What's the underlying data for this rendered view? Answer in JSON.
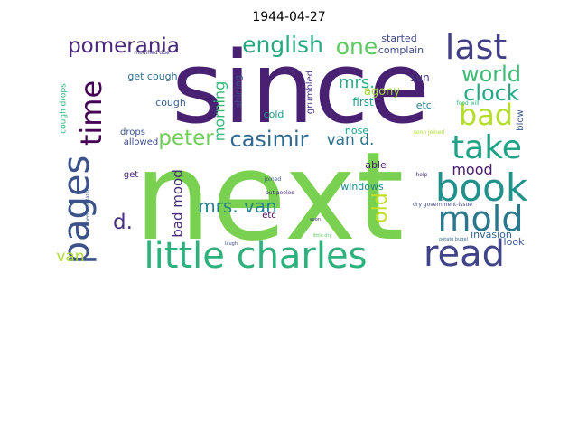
{
  "figure": {
    "title": "1944-04-27"
  },
  "chart_data": {
    "type": "wordcloud",
    "title": "1944-04-27",
    "colormap": "viridis",
    "background": "#ffffff",
    "words": [
      {
        "text": "since",
        "weight": 100,
        "color": "#482173",
        "vertical": false
      },
      {
        "text": "next",
        "weight": 98,
        "color": "#7ad151",
        "vertical": false
      },
      {
        "text": "little charles",
        "weight": 34,
        "color": "#2db27d",
        "vertical": false
      },
      {
        "text": "book",
        "weight": 30,
        "color": "#21918c",
        "vertical": false
      },
      {
        "text": "read",
        "weight": 28,
        "color": "#414487",
        "vertical": false
      },
      {
        "text": "pages",
        "weight": 28,
        "color": "#3b528b",
        "vertical": true
      },
      {
        "text": "mold",
        "weight": 26,
        "color": "#2a788e",
        "vertical": false
      },
      {
        "text": "last",
        "weight": 26,
        "color": "#433e85",
        "vertical": false
      },
      {
        "text": "take",
        "weight": 24,
        "color": "#20a386",
        "vertical": false
      },
      {
        "text": "bad",
        "weight": 22,
        "color": "#b5de2b",
        "vertical": false
      },
      {
        "text": "time",
        "weight": 22,
        "color": "#440154",
        "vertical": true
      },
      {
        "text": "pomerania",
        "weight": 19,
        "color": "#482878",
        "vertical": false
      },
      {
        "text": "english",
        "weight": 19,
        "color": "#25ab82",
        "vertical": false
      },
      {
        "text": "one",
        "weight": 19,
        "color": "#5ec962",
        "vertical": false
      },
      {
        "text": "world",
        "weight": 17,
        "color": "#3bbb75",
        "vertical": false
      },
      {
        "text": "clock",
        "weight": 17,
        "color": "#22a884",
        "vertical": false
      },
      {
        "text": "casimir",
        "weight": 17,
        "color": "#31688e",
        "vertical": false
      },
      {
        "text": "peter",
        "weight": 16,
        "color": "#6ece58",
        "vertical": false
      },
      {
        "text": "mrs. van",
        "weight": 15,
        "color": "#26828e",
        "vertical": false
      },
      {
        "text": "old",
        "weight": 15,
        "color": "#c2df23",
        "vertical": true
      },
      {
        "text": "van d.",
        "weight": 12,
        "color": "#2c728e",
        "vertical": false
      },
      {
        "text": "mrs.",
        "weight": 12,
        "color": "#27ad81",
        "vertical": false
      },
      {
        "text": "morning",
        "weight": 11,
        "color": "#35b779",
        "vertical": true
      },
      {
        "text": "d.",
        "weight": 14,
        "color": "#46327e",
        "vertical": false
      },
      {
        "text": "van",
        "weight": 13,
        "color": "#addc30",
        "vertical": false
      },
      {
        "text": "bad mood",
        "weight": 11,
        "color": "#472d7b",
        "vertical": true
      },
      {
        "text": "mood",
        "weight": 11,
        "color": "#481a6c",
        "vertical": false
      },
      {
        "text": "agony",
        "weight": 9,
        "color": "#9fda3a",
        "vertical": false
      },
      {
        "text": "complain",
        "weight": 8,
        "color": "#3e4989",
        "vertical": false
      },
      {
        "text": "started",
        "weight": 8,
        "color": "#3f4788",
        "vertical": false
      },
      {
        "text": "sun",
        "weight": 8,
        "color": "#443983",
        "vertical": false
      },
      {
        "text": "first",
        "weight": 8,
        "color": "#1f9e89",
        "vertical": false
      },
      {
        "text": "etc.",
        "weight": 7,
        "color": "#277f8e",
        "vertical": false
      },
      {
        "text": "cold",
        "weight": 7,
        "color": "#1e9b8a",
        "vertical": false
      },
      {
        "text": "grumbled",
        "weight": 7,
        "color": "#46337f",
        "vertical": true
      },
      {
        "text": "shining",
        "weight": 7,
        "color": "#3d4e8a",
        "vertical": true
      },
      {
        "text": "nose",
        "weight": 7,
        "color": "#1fa188",
        "vertical": false
      },
      {
        "text": "windows",
        "weight": 7,
        "color": "#24878e",
        "vertical": false
      },
      {
        "text": "able",
        "weight": 7,
        "color": "#482475",
        "vertical": false
      },
      {
        "text": "invasion",
        "weight": 7,
        "color": "#355f8d",
        "vertical": false
      },
      {
        "text": "look",
        "weight": 7,
        "color": "#3a548c",
        "vertical": false
      },
      {
        "text": "get cough",
        "weight": 7,
        "color": "#2f6c8e",
        "vertical": false
      },
      {
        "text": "cough",
        "weight": 7,
        "color": "#365d8d",
        "vertical": false
      },
      {
        "text": "cough drops",
        "weight": 7,
        "color": "#2fb47c",
        "vertical": true
      },
      {
        "text": "drops",
        "weight": 7,
        "color": "#3b528b",
        "vertical": false
      },
      {
        "text": "allowed",
        "weight": 7,
        "color": "#3e4a89",
        "vertical": false
      },
      {
        "text": "get",
        "weight": 7,
        "color": "#482878",
        "vertical": false
      },
      {
        "text": "etc",
        "weight": 7,
        "color": "#440154",
        "vertical": false
      },
      {
        "text": "blow",
        "weight": 6,
        "color": "#3a548c",
        "vertical": true
      },
      {
        "text": "food will",
        "weight": 4,
        "color": "#2db27d",
        "vertical": false
      },
      {
        "text": "modified due",
        "weight": 4,
        "color": "#453882",
        "vertical": false
      },
      {
        "text": "peeled potatoes",
        "weight": 3,
        "color": "#39568c",
        "vertical": true
      },
      {
        "text": "soon joined",
        "weight": 3,
        "color": "#addc30",
        "vertical": false
      },
      {
        "text": "help",
        "weight": 3,
        "color": "#46327e",
        "vertical": false
      },
      {
        "text": "dry government-issue",
        "weight": 3,
        "color": "#404688",
        "vertical": false
      },
      {
        "text": "joined",
        "weight": 3,
        "color": "#3b528b",
        "vertical": false
      },
      {
        "text": "put peeled",
        "weight": 3,
        "color": "#482878",
        "vertical": false
      },
      {
        "text": "soon",
        "weight": 3,
        "color": "#443983",
        "vertical": false
      },
      {
        "text": "little dry",
        "weight": 3,
        "color": "#5ec962",
        "vertical": false
      },
      {
        "text": "laugh",
        "weight": 3,
        "color": "#3e4989",
        "vertical": false
      },
      {
        "text": "potato bugel",
        "weight": 3,
        "color": "#31688e",
        "vertical": false
      }
    ]
  }
}
